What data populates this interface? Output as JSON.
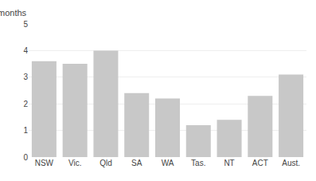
{
  "chart_data": {
    "type": "bar",
    "categories": [
      "NSW",
      "Vic.",
      "Qld",
      "SA",
      "WA",
      "Tas.",
      "NT",
      "ACT",
      "Aust."
    ],
    "values": [
      3.6,
      3.5,
      4.0,
      2.4,
      2.2,
      1.2,
      1.4,
      2.3,
      3.1
    ],
    "color": "#c8c8c8",
    "ylabel": "months",
    "ylim": [
      0,
      5
    ],
    "yticks": [
      0,
      1,
      2,
      3,
      4,
      5
    ],
    "grid": true
  }
}
